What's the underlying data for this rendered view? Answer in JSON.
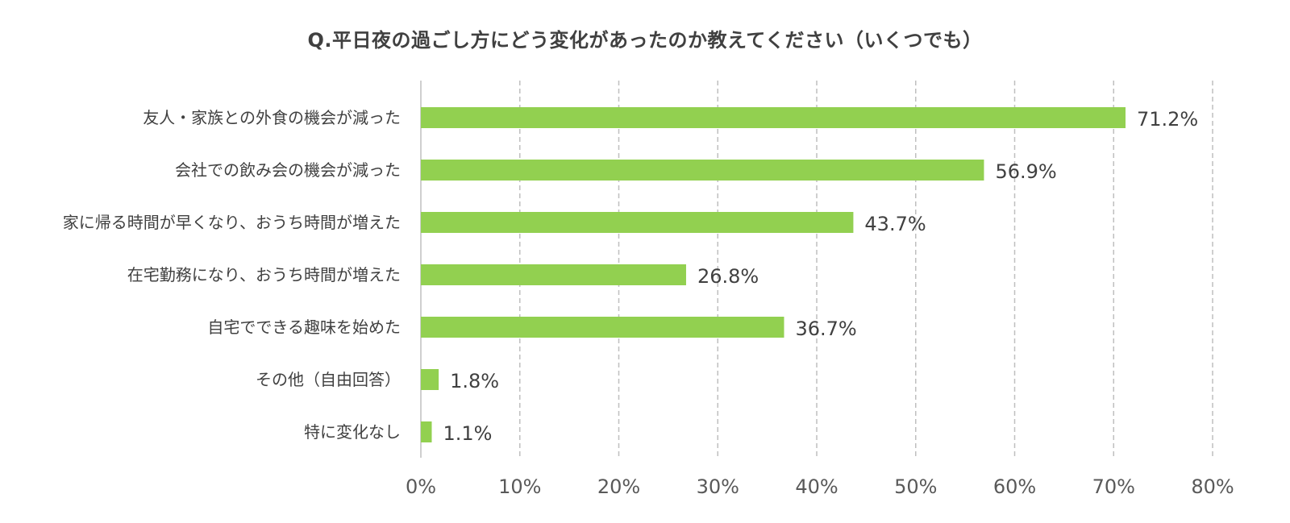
{
  "chart_data": {
    "type": "bar",
    "orientation": "horizontal",
    "title": "Q.平日夜の過ごし方にどう変化があったのか教えてください（いくつでも）",
    "categories": [
      "友人・家族との外食の機会が減った",
      "会社での飲み会の機会が減った",
      "家に帰る時間が早くなり、おうち時間が増えた",
      "在宅勤務になり、おうち時間が増えた",
      "自宅でできる趣味を始めた",
      "その他（自由回答）",
      "特に変化なし"
    ],
    "values": [
      71.2,
      56.9,
      43.7,
      26.8,
      36.7,
      1.8,
      1.1
    ],
    "value_labels": [
      "71.2%",
      "56.9%",
      "43.7%",
      "26.8%",
      "36.7%",
      "1.8%",
      "1.1%"
    ],
    "xlim": [
      0,
      80
    ],
    "xticks": [
      0,
      10,
      20,
      30,
      40,
      50,
      60,
      70,
      80
    ],
    "xtick_labels": [
      "0%",
      "10%",
      "20%",
      "30%",
      "40%",
      "50%",
      "60%",
      "70%",
      "80%"
    ],
    "grid": true,
    "legend": "none",
    "colors": {
      "bar": "#92d050",
      "grid": "#bfbfbf",
      "text": "#404040"
    }
  }
}
